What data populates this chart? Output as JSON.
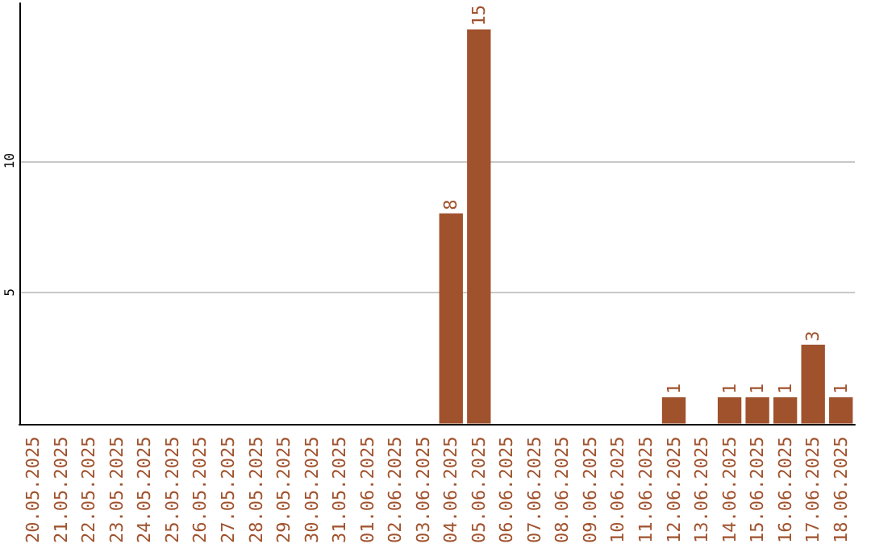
{
  "chart_data": {
    "type": "bar",
    "categories": [
      "20.05.2025",
      "21.05.2025",
      "22.05.2025",
      "23.05.2025",
      "24.05.2025",
      "25.05.2025",
      "26.05.2025",
      "27.05.2025",
      "28.05.2025",
      "29.05.2025",
      "30.05.2025",
      "31.05.2025",
      "01.06.2025",
      "02.06.2025",
      "03.06.2025",
      "04.06.2025",
      "05.06.2025",
      "06.06.2025",
      "07.06.2025",
      "08.06.2025",
      "09.06.2025",
      "10.06.2025",
      "11.06.2025",
      "12.06.2025",
      "13.06.2025",
      "14.06.2025",
      "15.06.2025",
      "16.06.2025",
      "17.06.2025",
      "18.06.2025"
    ],
    "values": [
      0,
      0,
      0,
      0,
      0,
      0,
      0,
      0,
      0,
      0,
      0,
      0,
      0,
      0,
      0,
      8,
      15,
      0,
      0,
      0,
      0,
      0,
      0,
      1,
      0,
      1,
      1,
      1,
      3,
      1
    ],
    "value_labels": [
      null,
      null,
      null,
      null,
      null,
      null,
      null,
      null,
      null,
      null,
      null,
      null,
      null,
      null,
      null,
      "8",
      "15",
      null,
      null,
      null,
      null,
      null,
      null,
      "1",
      null,
      "1",
      "1",
      "1",
      "3",
      "1"
    ],
    "color": "#a0522d",
    "ylim": [
      0,
      16
    ],
    "yticks": [
      5,
      10
    ],
    "grid": "y"
  }
}
